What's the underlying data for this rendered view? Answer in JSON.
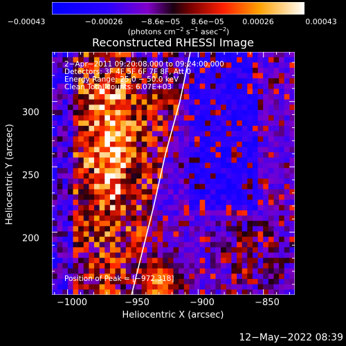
{
  "colorbar": {
    "ticks": [
      "−0.00043",
      "−0.00026",
      "−8.6e−05",
      "8.6e−05",
      "0.00026",
      "0.00043"
    ],
    "units_main": "(photons cm",
    "units_sup1": "−2",
    "units_mid": " s",
    "units_sup2": "−1",
    "units_end": " asec",
    "units_sup3": "−2",
    "units_close": ")"
  },
  "chart_data": {
    "type": "heatmap",
    "title": "Reconstructed RHESSI Image",
    "xlabel": "Heliocentric X (arcsec)",
    "ylabel": "Heliocentric Y (arcsec)",
    "xlim": [
      -1012,
      -826
    ],
    "ylim": [
      152,
      338
    ],
    "xticks": [
      -1000,
      -950,
      -900,
      -850
    ],
    "xtick_labels": [
      "−1000",
      "−950",
      "−900",
      "−850"
    ],
    "yticks": [
      200,
      250,
      300
    ],
    "ytick_labels": [
      "200",
      "250",
      "300"
    ],
    "colorscale": {
      "min": -0.00043,
      "max": 0.00043
    },
    "limb": [
      [
        -951,
        152
      ],
      [
        -944,
        180
      ],
      [
        -934,
        220
      ],
      [
        -925,
        260
      ],
      [
        -914,
        300
      ],
      [
        -906,
        338
      ]
    ],
    "peak": [
      -972,
      318
    ],
    "annotations": [
      "2−Apr−2011 09:20:08.000 to 09:24:00.000",
      "Detectors: 3F 4F 5F 6F 7F 8F, Att 0",
      "Energy Range: 25.0 − 50.0 keV",
      "Clean     Total counts: 6.07E+03"
    ],
    "peak_label": "Position of Peak = [−972,318]"
  },
  "timestamp": "12−May−2022 08:39"
}
